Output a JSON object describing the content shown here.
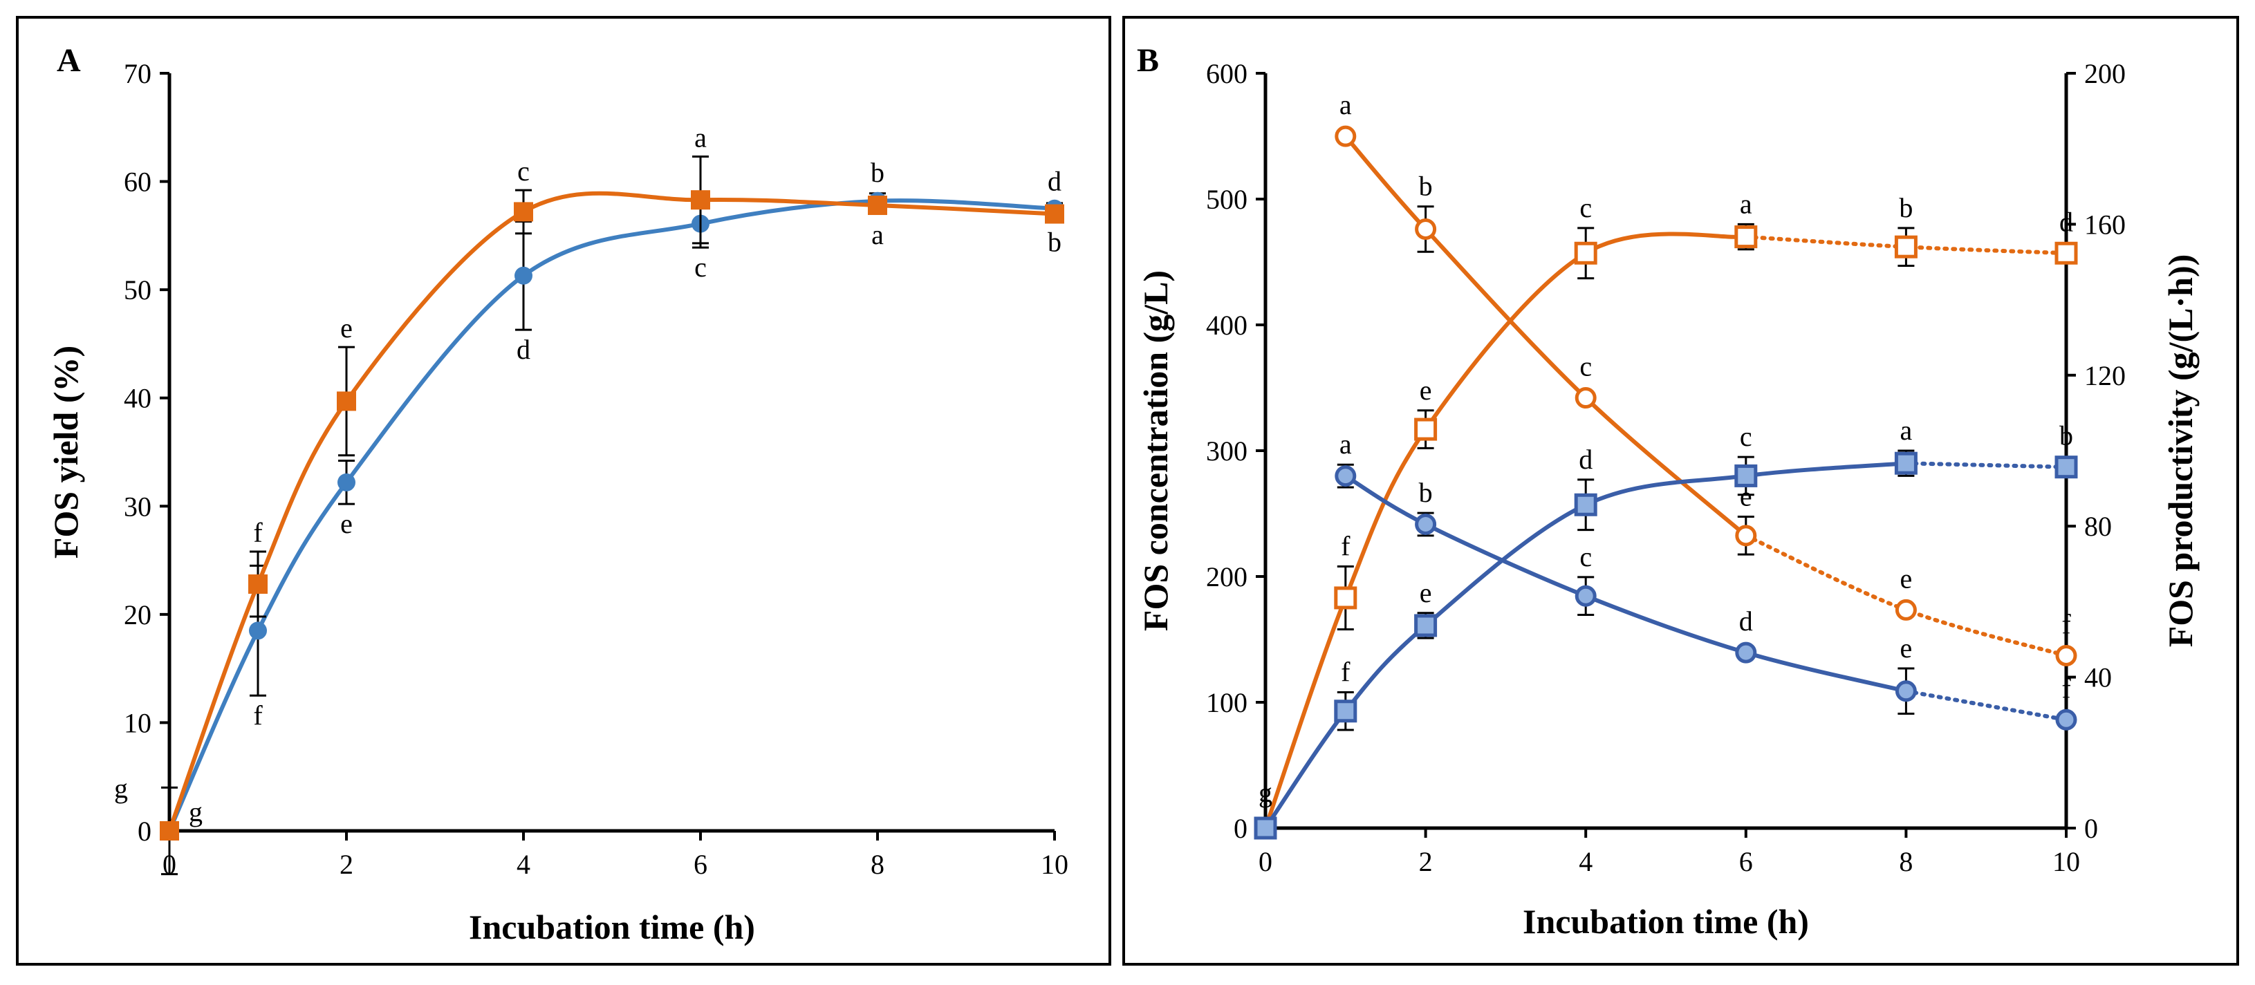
{
  "figure": {
    "panels": [
      "A",
      "B"
    ]
  },
  "chart_data": [
    {
      "panel": "A",
      "type": "line",
      "title": "",
      "xlabel": "Incubation time (h)",
      "ylabel": "FOS yield (%)",
      "xlim": [
        0,
        10
      ],
      "ylim": [
        0,
        70
      ],
      "xticks": [
        0,
        2,
        4,
        6,
        8,
        10
      ],
      "yticks": [
        0,
        10,
        20,
        30,
        40,
        50,
        60,
        70
      ],
      "grid": false,
      "series": [
        {
          "name": "blue circles",
          "color": "#3f7fc0",
          "marker": "circle",
          "x": [
            0,
            1,
            2,
            4,
            6,
            8,
            10
          ],
          "y": [
            0,
            18.5,
            32.2,
            51.3,
            56.1,
            58.2,
            57.5
          ],
          "err": [
            0,
            6,
            2,
            5,
            2.2,
            0.7,
            0.5
          ],
          "letters": [
            "g",
            "f",
            "e",
            "d",
            "c",
            "a",
            "b"
          ],
          "letter_pos": [
            "right",
            "below",
            "below",
            "below",
            "below",
            "below",
            "below"
          ]
        },
        {
          "name": "orange squares",
          "color": "#e26a12",
          "marker": "square",
          "x": [
            0,
            1,
            2,
            4,
            6,
            8,
            10
          ],
          "y": [
            0,
            22.8,
            39.7,
            57.2,
            58.3,
            57.8,
            57.0
          ],
          "err": [
            4,
            3,
            5,
            2,
            4,
            0.6,
            0.6
          ],
          "letters": [
            "g",
            "f",
            "e",
            "c",
            "a",
            "b",
            "d"
          ],
          "letter_pos": [
            "left",
            "above",
            "above",
            "above",
            "above",
            "above",
            "above"
          ]
        }
      ]
    },
    {
      "panel": "B",
      "type": "line",
      "title": "",
      "xlabel": "Incubation time (h)",
      "ylabel": "FOS concentration (g/L)",
      "y2label": "FOS productivity (g/(L·h))",
      "xlim": [
        0,
        10
      ],
      "ylim": [
        0,
        600
      ],
      "y2lim": [
        0,
        200
      ],
      "xticks": [
        0,
        2,
        4,
        6,
        8,
        10
      ],
      "yticks": [
        0,
        100,
        200,
        300,
        400,
        500,
        600
      ],
      "y2ticks": [
        0,
        40,
        80,
        120,
        160,
        200
      ],
      "grid": false,
      "series": [
        {
          "name": "orange open squares (concentration)",
          "color": "#e26a12",
          "marker": "square-open",
          "axis": "left",
          "x": [
            0,
            1,
            2,
            4,
            6,
            8,
            10
          ],
          "y": [
            0,
            183,
            317,
            457,
            470,
            462,
            457
          ],
          "err": [
            0,
            25,
            15,
            20,
            10,
            15,
            0
          ],
          "dotted_from_index": 4,
          "letters": [
            "",
            "f",
            "e",
            "c",
            "a",
            "b",
            "d"
          ]
        },
        {
          "name": "orange open circles (productivity)",
          "color": "#e26a12",
          "marker": "circle-open",
          "axis": "right",
          "x": [
            1,
            2,
            4,
            6,
            8,
            10
          ],
          "y": [
            183.3,
            158.7,
            114.0,
            77.5,
            57.8,
            45.7
          ],
          "err": [
            0,
            6,
            0,
            5,
            0,
            0
          ],
          "dotted_from_index": 3,
          "letters": [
            "a",
            "b",
            "c",
            "e",
            "e",
            "f"
          ]
        },
        {
          "name": "blue filled squares (concentration)",
          "color": "#3a5ea8",
          "fill": "#8fb0e0",
          "marker": "square",
          "axis": "left",
          "x": [
            0,
            1,
            2,
            4,
            6,
            8,
            10
          ],
          "y": [
            0,
            93,
            161,
            257,
            280,
            290,
            287
          ],
          "err": [
            0,
            15,
            10,
            20,
            15,
            10,
            0
          ],
          "dotted_from_index": 5,
          "letters": [
            "g",
            "f",
            "e",
            "d",
            "c",
            "a",
            "b"
          ]
        },
        {
          "name": "blue filled circles (productivity)",
          "color": "#3a5ea8",
          "fill": "#8fb0e0",
          "marker": "circle",
          "axis": "right",
          "x": [
            1,
            2,
            4,
            6,
            8,
            10
          ],
          "y": [
            93.3,
            80.5,
            61.5,
            46.5,
            36.3,
            28.7
          ],
          "err": [
            3,
            3,
            5,
            0,
            6,
            0
          ],
          "dotted_from_index": 4,
          "letters": [
            "a",
            "b",
            "c",
            "d",
            "e",
            "f"
          ]
        }
      ]
    }
  ]
}
